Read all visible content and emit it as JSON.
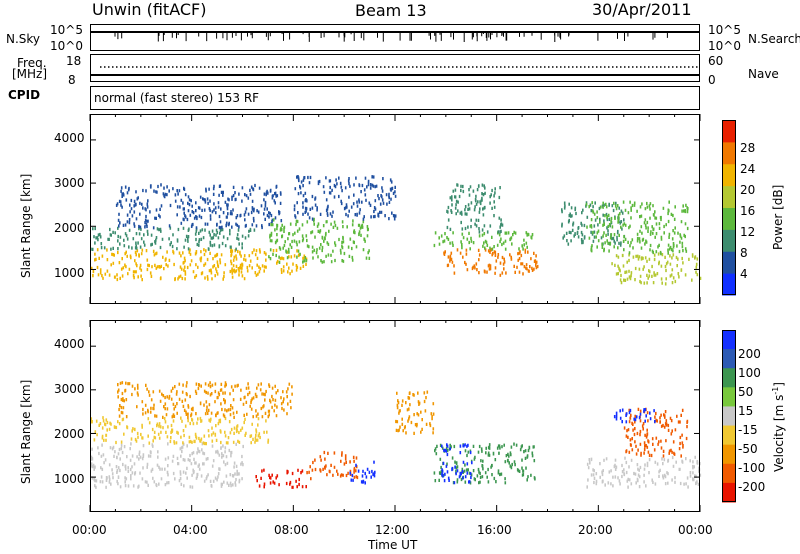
{
  "header": {
    "station": "Unwin (fitACF)",
    "beam": "Beam 13",
    "date": "30/Apr/2011"
  },
  "top_panels": {
    "nsky_label": "N.Sky",
    "nsky_ticks": [
      "10^5",
      "10^0"
    ],
    "nsearch_label": "N.Search",
    "nsearch_ticks": [
      "10^5",
      "10^0"
    ],
    "freq_label": "Freq.",
    "freq_unit": "[MHz]",
    "freq_ticks": [
      "18",
      "8"
    ],
    "nave_label": "Nave",
    "nave_ticks": [
      "60",
      "0"
    ],
    "cpid_label": "CPID",
    "cpid_text": "normal (fast stereo) 153 RF"
  },
  "chart_data": [
    {
      "type": "heatmap",
      "panel": "power",
      "ylabel": "Slant Range [km]",
      "xlabel": "",
      "y_ticks": [
        "1000",
        "2000",
        "3000",
        "4000"
      ],
      "ylim": [
        200,
        4600
      ],
      "xlim": [
        0,
        24
      ],
      "colorbar_label": "Power [dB]",
      "colorbar_ticks": [
        "4",
        "8",
        "12",
        "16",
        "20",
        "24",
        "28"
      ],
      "colorbar_colors": [
        "#1030ff",
        "#2050a0",
        "#3c8c6e",
        "#5cb83c",
        "#b4c832",
        "#f0b400",
        "#f07800",
        "#e82000"
      ],
      "regions": [
        {
          "t0": 0.0,
          "t1": 6.2,
          "r0": 800,
          "r1": 1500,
          "level": 18
        },
        {
          "t0": 0.0,
          "t1": 6.5,
          "r0": 1500,
          "r1": 2000,
          "level": 12
        },
        {
          "t0": 1.0,
          "t1": 7.5,
          "r0": 2000,
          "r1": 3000,
          "level": 8
        },
        {
          "t0": 5.5,
          "t1": 8.5,
          "r0": 900,
          "r1": 1500,
          "level": 20
        },
        {
          "t0": 7.0,
          "t1": 11.0,
          "r0": 1200,
          "r1": 2200,
          "level": 14
        },
        {
          "t0": 8.0,
          "t1": 12.0,
          "r0": 2200,
          "r1": 3200,
          "level": 8
        },
        {
          "t0": 13.8,
          "t1": 17.6,
          "r0": 900,
          "r1": 1500,
          "level": 26
        },
        {
          "t0": 13.5,
          "t1": 17.5,
          "r0": 1500,
          "r1": 1900,
          "level": 10
        },
        {
          "t0": 14.0,
          "t1": 16.2,
          "r0": 1900,
          "r1": 3000,
          "level": 8
        },
        {
          "t0": 18.5,
          "t1": 21.0,
          "r0": 1600,
          "r1": 2600,
          "level": 8
        },
        {
          "t0": 20.5,
          "t1": 24.0,
          "r0": 700,
          "r1": 1400,
          "level": 18
        },
        {
          "t0": 19.5,
          "t1": 23.5,
          "r0": 1400,
          "r1": 2600,
          "level": 14
        }
      ]
    },
    {
      "type": "heatmap",
      "panel": "velocity",
      "ylabel": "Slant Range [km]",
      "xlabel": "Time UT",
      "x_ticks": [
        "00:00",
        "04:00",
        "08:00",
        "12:00",
        "16:00",
        "20:00",
        "00:00"
      ],
      "y_ticks": [
        "1000",
        "2000",
        "3000",
        "4000"
      ],
      "ylim": [
        200,
        4600
      ],
      "xlim": [
        0,
        24
      ],
      "colorbar_label": "Velocity [m s",
      "colorbar_sup": "-1",
      "colorbar_label_end": "]",
      "colorbar_ticks": [
        "200",
        "100",
        "50",
        "15",
        "-15",
        "-50",
        "-100",
        "-200"
      ],
      "colorbar_colors": [
        "#1430ff",
        "#2c5ab4",
        "#3c9650",
        "#78c83c",
        "#c8c8c8",
        "#f0c832",
        "#f09600",
        "#f05a00",
        "#e81400"
      ],
      "regions": [
        {
          "t0": 0.0,
          "t1": 6.0,
          "r0": 800,
          "r1": 1800,
          "level": 0
        },
        {
          "t0": 0.0,
          "t1": 7.0,
          "r0": 1800,
          "r1": 2400,
          "level": -30
        },
        {
          "t0": 1.0,
          "t1": 8.0,
          "r0": 2400,
          "r1": 3200,
          "level": -60
        },
        {
          "t0": 6.5,
          "t1": 8.5,
          "r0": 800,
          "r1": 1200,
          "level": -200
        },
        {
          "t0": 8.5,
          "t1": 10.5,
          "r0": 1000,
          "r1": 1600,
          "level": -120
        },
        {
          "t0": 10.2,
          "t1": 11.2,
          "r0": 900,
          "r1": 1400,
          "level": 200
        },
        {
          "t0": 12.0,
          "t1": 13.5,
          "r0": 2000,
          "r1": 3000,
          "level": -60
        },
        {
          "t0": 13.5,
          "t1": 17.5,
          "r0": 900,
          "r1": 1800,
          "level": 60
        },
        {
          "t0": 13.8,
          "t1": 15.0,
          "r0": 900,
          "r1": 1800,
          "level": 200
        },
        {
          "t0": 19.5,
          "t1": 24.0,
          "r0": 800,
          "r1": 1500,
          "level": 0
        },
        {
          "t0": 21.0,
          "t1": 23.5,
          "r0": 1500,
          "r1": 2600,
          "level": -100
        },
        {
          "t0": 20.5,
          "t1": 22.5,
          "r0": 2300,
          "r1": 2600,
          "level": 200
        }
      ]
    }
  ]
}
